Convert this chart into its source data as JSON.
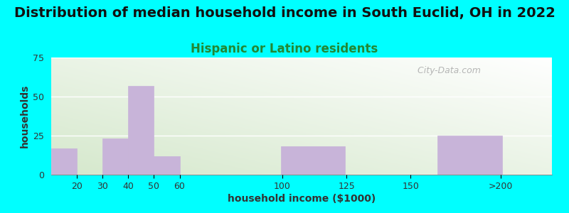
{
  "title": "Distribution of median household income in South Euclid, OH in 2022",
  "subtitle": "Hispanic or Latino residents",
  "xlabel": "household income ($1000)",
  "ylabel": "households",
  "bar_positions": [
    15,
    35,
    45,
    55,
    112,
    173
  ],
  "bar_heights": [
    17,
    23,
    57,
    12,
    18,
    25
  ],
  "bar_widths": [
    10,
    10,
    10,
    10,
    25,
    25
  ],
  "bar_color": "#C8B4D9",
  "bar_edgecolor": "#C8B4D9",
  "xtick_positions": [
    20,
    30,
    40,
    50,
    60,
    100,
    125,
    150,
    185
  ],
  "xtick_labels": [
    "20",
    "30",
    "40",
    "50",
    "60",
    "100",
    "125",
    "150",
    ">200"
  ],
  "xlim": [
    10,
    205
  ],
  "ylim": [
    0,
    75
  ],
  "yticks": [
    0,
    25,
    50,
    75
  ],
  "bg_color": "#00FFFF",
  "plot_bg_topleft": "#F0F7EC",
  "plot_bg_topright": "#FFFFFF",
  "plot_bg_bottomleft": "#D5E8CC",
  "plot_bg_bottomright": "#F0F7F0",
  "watermark": "  City-Data.com",
  "title_fontsize": 14,
  "subtitle_fontsize": 12,
  "subtitle_color": "#228833",
  "axis_label_fontsize": 10,
  "tick_fontsize": 9,
  "watermark_color": "#AAAAAA",
  "grid_color": "#CCCCCC"
}
